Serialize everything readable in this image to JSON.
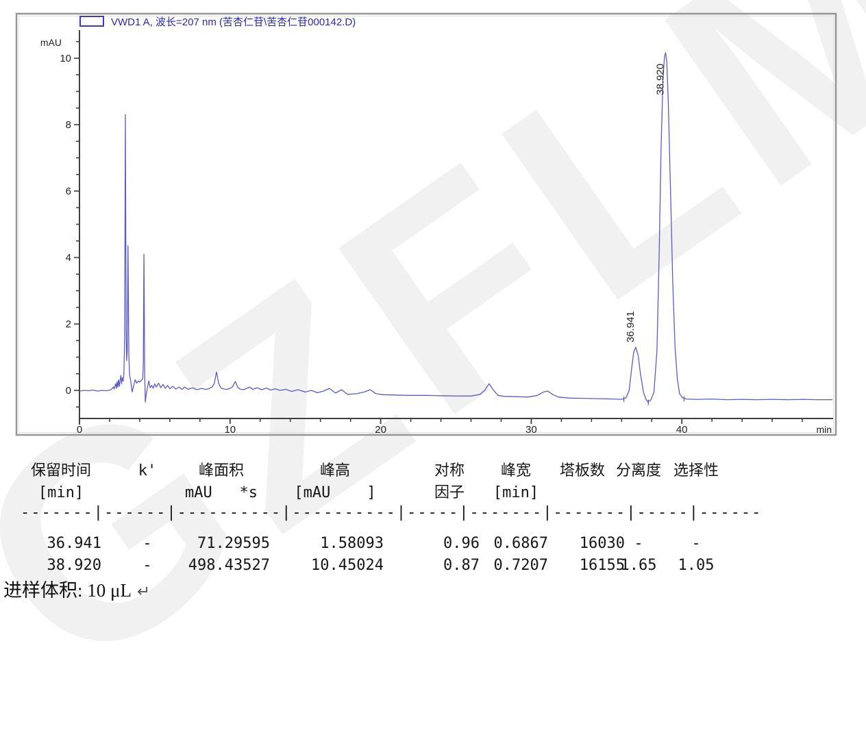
{
  "watermark": {
    "text": "GZFLM"
  },
  "chart": {
    "legend": {
      "label": "VWD1 A, 波长=207 nm (苦杏仁苷\\苦杏仁苷000142.D)",
      "swatch_color": "#3a3ac4"
    },
    "y_axis_label": "mAU",
    "x_axis_label": "min"
  },
  "chart_data": {
    "type": "line",
    "title": "VWD1 A, 波长=207 nm (苦杏仁苷\\苦杏仁苷000142.D)",
    "xlabel": "min",
    "ylabel": "mAU",
    "xlim": [
      0,
      50
    ],
    "ylim": [
      -0.85,
      10.8
    ],
    "x_major_ticks": [
      0,
      10,
      20,
      30,
      40
    ],
    "x_minor_step": 2,
    "y_major_ticks": [
      0,
      2,
      4,
      6,
      8,
      10
    ],
    "y_minor_step": 0.5,
    "grid": false,
    "legend_position": "top-left",
    "series": [
      {
        "name": "VWD1 A",
        "color": "#5a5ac8",
        "points": [
          [
            0,
            -0.02
          ],
          [
            0.3,
            0
          ],
          [
            0.6,
            -0.01
          ],
          [
            0.9,
            0.01
          ],
          [
            1.2,
            -0.02
          ],
          [
            1.5,
            0
          ],
          [
            1.8,
            -0.01
          ],
          [
            2.1,
            0.02
          ],
          [
            2.25,
            0.1
          ],
          [
            2.3,
            0.04
          ],
          [
            2.4,
            0.2
          ],
          [
            2.45,
            0.06
          ],
          [
            2.5,
            0.26
          ],
          [
            2.55,
            0.1
          ],
          [
            2.6,
            0.32
          ],
          [
            2.65,
            0.12
          ],
          [
            2.7,
            0.3
          ],
          [
            2.75,
            0.45
          ],
          [
            2.8,
            0.2
          ],
          [
            2.85,
            0.38
          ],
          [
            2.9,
            0.28
          ],
          [
            2.95,
            0.5
          ],
          [
            3.0,
            1.5
          ],
          [
            3.05,
            8.3
          ],
          [
            3.1,
            1.8
          ],
          [
            3.13,
            0.9
          ],
          [
            3.17,
            1.2
          ],
          [
            3.22,
            4.35
          ],
          [
            3.28,
            1.0
          ],
          [
            3.33,
            0.45
          ],
          [
            3.4,
            0.3
          ],
          [
            3.5,
            -0.05
          ],
          [
            3.6,
            0.15
          ],
          [
            3.7,
            0.32
          ],
          [
            3.8,
            0.22
          ],
          [
            3.9,
            0.28
          ],
          [
            4.0,
            0.25
          ],
          [
            4.1,
            0.3
          ],
          [
            4.2,
            0.35
          ],
          [
            4.24,
            0.8
          ],
          [
            4.28,
            4.1
          ],
          [
            4.33,
            0.5
          ],
          [
            4.37,
            -0.35
          ],
          [
            4.42,
            -0.15
          ],
          [
            4.5,
            0.05
          ],
          [
            4.6,
            0.28
          ],
          [
            4.7,
            0.08
          ],
          [
            4.8,
            0.15
          ],
          [
            4.9,
            0.06
          ],
          [
            5.0,
            0.2
          ],
          [
            5.1,
            0.1
          ],
          [
            5.25,
            0.22
          ],
          [
            5.4,
            0.08
          ],
          [
            5.55,
            0.18
          ],
          [
            5.7,
            0.06
          ],
          [
            5.85,
            0.15
          ],
          [
            6.0,
            0.05
          ],
          [
            6.2,
            0.12
          ],
          [
            6.4,
            0.04
          ],
          [
            6.6,
            0.1
          ],
          [
            6.8,
            0.03
          ],
          [
            7.0,
            0.1
          ],
          [
            7.2,
            0.03
          ],
          [
            7.5,
            0.08
          ],
          [
            7.8,
            0.02
          ],
          [
            8.1,
            0.06
          ],
          [
            8.4,
            0.03
          ],
          [
            8.6,
            0.05
          ],
          [
            8.8,
            0.1
          ],
          [
            8.95,
            0.2
          ],
          [
            9.1,
            0.55
          ],
          [
            9.25,
            0.2
          ],
          [
            9.4,
            0.07
          ],
          [
            9.6,
            0.04
          ],
          [
            9.8,
            0.03
          ],
          [
            10.0,
            0.06
          ],
          [
            10.15,
            0.1
          ],
          [
            10.35,
            0.27
          ],
          [
            10.5,
            0.1
          ],
          [
            10.65,
            0.04
          ],
          [
            10.9,
            0.02
          ],
          [
            11.1,
            0.06
          ],
          [
            11.3,
            0.1
          ],
          [
            11.5,
            0.03
          ],
          [
            11.8,
            0.08
          ],
          [
            12.1,
            0.02
          ],
          [
            12.4,
            0.07
          ],
          [
            12.7,
            0.01
          ],
          [
            13.0,
            0.05
          ],
          [
            13.3,
            0.0
          ],
          [
            13.7,
            0.03
          ],
          [
            14.1,
            -0.03
          ],
          [
            14.5,
            0.02
          ],
          [
            15.0,
            -0.05
          ],
          [
            15.4,
            0.0
          ],
          [
            15.8,
            -0.07
          ],
          [
            16.2,
            -0.02
          ],
          [
            16.6,
            0.06
          ],
          [
            17.0,
            -0.08
          ],
          [
            17.4,
            0.02
          ],
          [
            17.8,
            -0.12
          ],
          [
            18.4,
            -0.1
          ],
          [
            18.9,
            -0.05
          ],
          [
            19.3,
            0.02
          ],
          [
            19.7,
            -0.1
          ],
          [
            20.2,
            -0.13
          ],
          [
            21,
            -0.14
          ],
          [
            22,
            -0.15
          ],
          [
            23,
            -0.15
          ],
          [
            24,
            -0.16
          ],
          [
            25,
            -0.17
          ],
          [
            26,
            -0.17
          ],
          [
            26.6,
            -0.12
          ],
          [
            26.9,
            0.0
          ],
          [
            27.2,
            0.2
          ],
          [
            27.5,
            0.0
          ],
          [
            27.8,
            -0.15
          ],
          [
            28.2,
            -0.18
          ],
          [
            29,
            -0.19
          ],
          [
            29.8,
            -0.2
          ],
          [
            30.4,
            -0.15
          ],
          [
            30.8,
            -0.05
          ],
          [
            31.1,
            -0.02
          ],
          [
            31.4,
            -0.12
          ],
          [
            31.8,
            -0.2
          ],
          [
            32.5,
            -0.23
          ],
          [
            33.5,
            -0.24
          ],
          [
            34.5,
            -0.25
          ],
          [
            35.5,
            -0.26
          ],
          [
            36.0,
            -0.27
          ],
          [
            36.3,
            -0.22
          ],
          [
            36.5,
            0.0
          ],
          [
            36.65,
            0.6
          ],
          [
            36.8,
            1.15
          ],
          [
            36.94,
            1.3
          ],
          [
            37.1,
            1.05
          ],
          [
            37.25,
            0.5
          ],
          [
            37.45,
            -0.05
          ],
          [
            37.6,
            -0.25
          ],
          [
            37.75,
            -0.35
          ],
          [
            37.95,
            -0.28
          ],
          [
            38.15,
            -0.05
          ],
          [
            38.35,
            1.2
          ],
          [
            38.5,
            4.2
          ],
          [
            38.62,
            7.3
          ],
          [
            38.75,
            9.4
          ],
          [
            38.85,
            10.05
          ],
          [
            38.92,
            10.17
          ],
          [
            39.0,
            9.9
          ],
          [
            39.1,
            8.7
          ],
          [
            39.25,
            6.0
          ],
          [
            39.4,
            3.2
          ],
          [
            39.55,
            1.3
          ],
          [
            39.7,
            0.35
          ],
          [
            39.85,
            -0.1
          ],
          [
            40.05,
            -0.22
          ],
          [
            40.3,
            -0.26
          ],
          [
            41,
            -0.27
          ],
          [
            42,
            -0.26
          ],
          [
            43,
            -0.28
          ],
          [
            44,
            -0.27
          ],
          [
            45,
            -0.28
          ],
          [
            46,
            -0.27
          ],
          [
            47,
            -0.28
          ],
          [
            48,
            -0.27
          ],
          [
            49,
            -0.28
          ],
          [
            50,
            -0.28
          ]
        ]
      }
    ],
    "peaks": [
      {
        "rt": 36.941,
        "label": "36.941"
      },
      {
        "rt": 38.92,
        "label": "38.920"
      }
    ],
    "integration_marks": [
      36.15,
      37.78,
      40.15
    ]
  },
  "table": {
    "headers_line1": [
      "保留时间",
      "k'",
      "峰面积",
      "峰高",
      "对称",
      "峰宽",
      "塔板数",
      "分离度",
      "选择性"
    ],
    "headers_line2": [
      "[min]",
      "",
      "mAU   *s",
      "[mAU    ]",
      "因子",
      "[min]",
      "",
      "",
      ""
    ],
    "separator": "-------|------|----------|----------|-----|-------|-------|-----|------",
    "rows": [
      [
        "36.941",
        "-",
        "71.29595",
        "1.58093",
        "0.96",
        "0.6867",
        "16030",
        "-",
        "-"
      ],
      [
        "38.920",
        "-",
        "498.43527",
        "10.45024",
        "0.87",
        "0.7207",
        "16155",
        "1.65",
        "1.05"
      ]
    ]
  },
  "footer": {
    "text": "进样体积: 10 μL",
    "return_mark": "↵"
  }
}
